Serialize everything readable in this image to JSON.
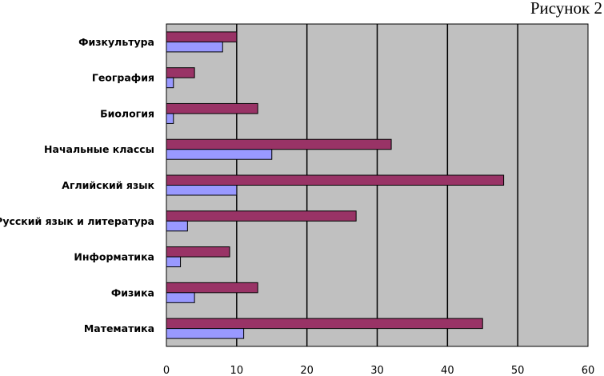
{
  "figure_label": "Рисунок 2",
  "chart_data": {
    "type": "bar",
    "orientation": "horizontal",
    "categories": [
      "Физкультура",
      "География",
      "Биология",
      "Начальные классы",
      "Аглийский язык",
      "Русский язык и литература",
      "Информатика",
      "Физика",
      "Математика"
    ],
    "series": [
      {
        "values": [
          10,
          4,
          13,
          32,
          48,
          27,
          9,
          13,
          45
        ]
      },
      {
        "values": [
          8,
          1,
          1,
          15,
          10,
          3,
          2,
          4,
          11
        ]
      }
    ],
    "xlim": [
      0,
      60
    ],
    "xticks": [
      "0",
      "10",
      "20",
      "30",
      "40",
      "50",
      "60"
    ],
    "grid": true,
    "legend": "none",
    "colors": {
      "plot_background": "#c0c0c0",
      "series_1": "#993366",
      "series_2": "#9999ff"
    }
  }
}
